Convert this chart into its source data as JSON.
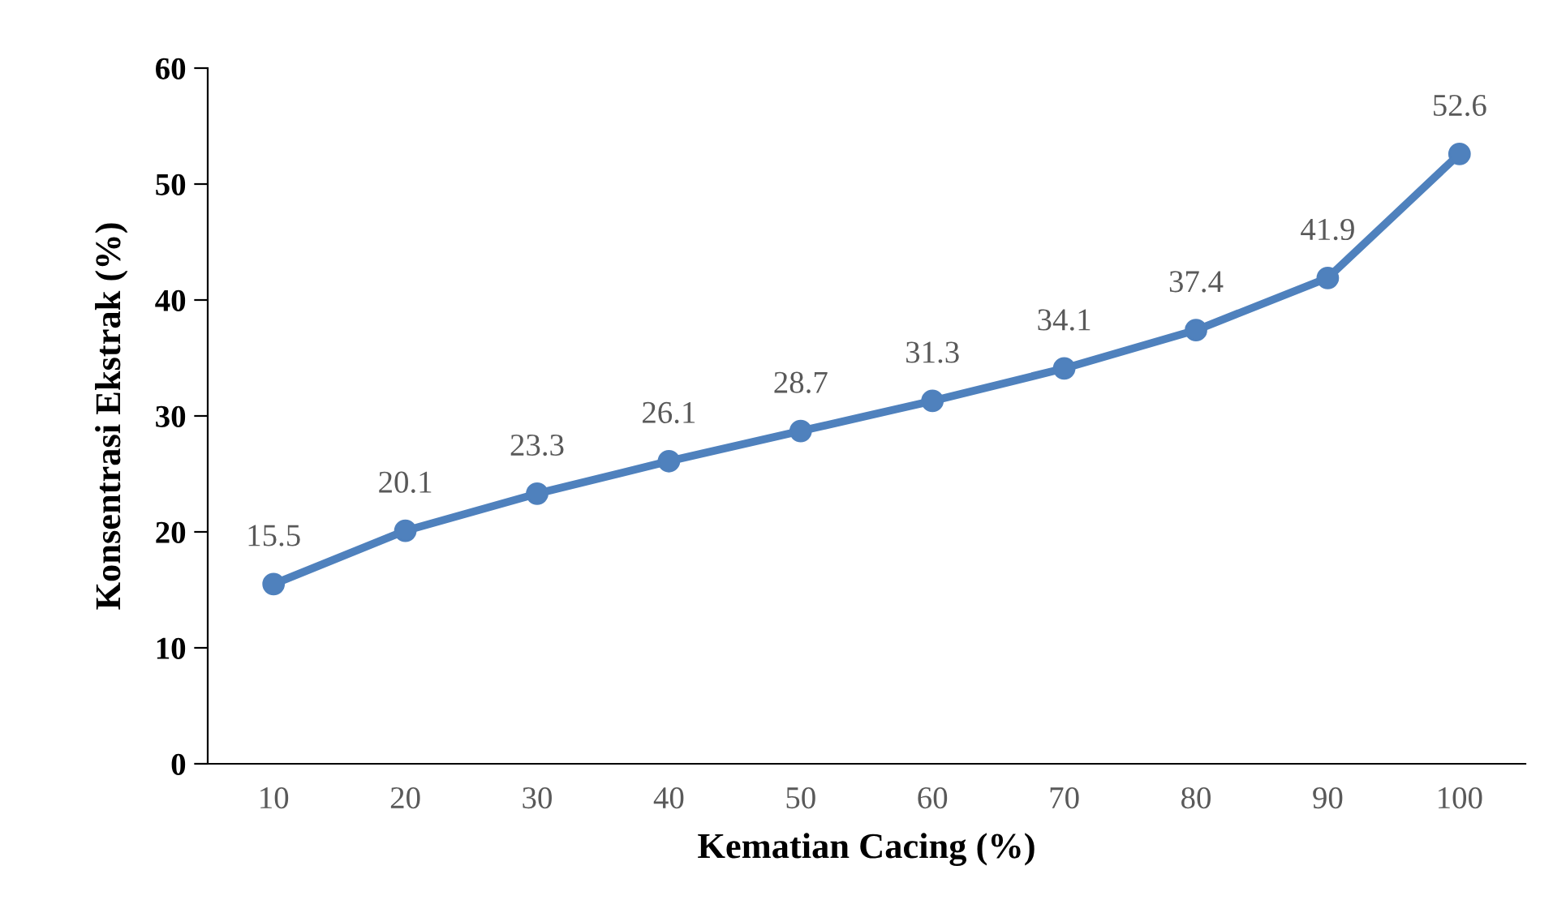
{
  "chart_data": {
    "type": "line",
    "xlabel": "Kematian Cacing (%)",
    "ylabel": "Konsentrasi Ekstrak (%)",
    "categories": [
      "10",
      "20",
      "30",
      "40",
      "50",
      "60",
      "70",
      "80",
      "90",
      "100"
    ],
    "series": [
      {
        "color": "#4f81bd",
        "values": [
          15.5,
          20.1,
          23.3,
          26.1,
          28.7,
          31.3,
          34.1,
          37.4,
          41.9,
          52.6
        ]
      }
    ],
    "ylim": [
      0,
      60
    ],
    "yticks": [
      0,
      10,
      20,
      30,
      40,
      50,
      60
    ],
    "grid": false,
    "legend": false,
    "marker": "circle",
    "line_style": "solid",
    "data_labels": true
  }
}
